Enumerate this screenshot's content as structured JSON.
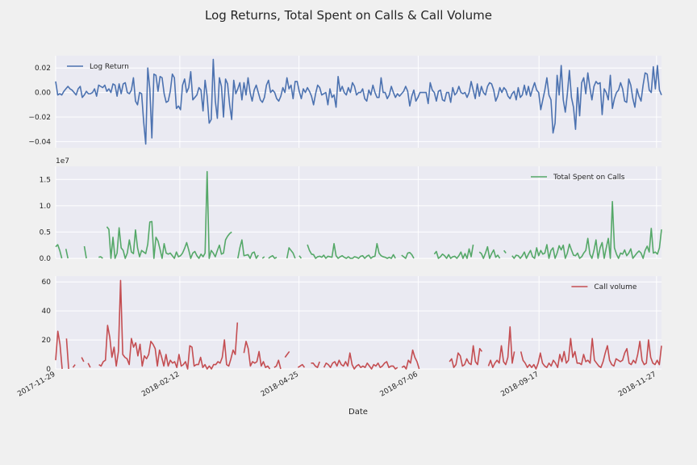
{
  "figure": {
    "title": "Log Returns, Total Spent on Calls & Call Volume",
    "xlabel": "Date"
  },
  "chart_data": [
    {
      "type": "line",
      "panel": "top",
      "series": [
        {
          "name": "Log Return",
          "color": "#4c72b0",
          "values": [
            0.009,
            -0.002,
            -0.001,
            -0.002,
            0.001,
            0.003,
            0.005,
            0.003,
            0.002,
            0.0,
            -0.002,
            0.003,
            0.005,
            -0.004,
            -0.002,
            0.001,
            -0.001,
            -0.001,
            0.0,
            0.003,
            -0.003,
            0.006,
            0.005,
            0.004,
            0.006,
            0.001,
            0.003,
            0.0,
            0.007,
            0.006,
            -0.003,
            0.007,
            -0.001,
            0.007,
            0.008,
            0.0,
            -0.001,
            0.002,
            0.012,
            -0.007,
            -0.01,
            0.0,
            -0.001,
            -0.024,
            -0.042,
            0.02,
            0.003,
            -0.037,
            0.015,
            0.014,
            0.001,
            0.013,
            0.012,
            -0.001,
            -0.008,
            -0.007,
            0.001,
            0.015,
            0.012,
            -0.013,
            -0.011,
            -0.014,
            0.006,
            0.011,
            0.0,
            0.004,
            0.017,
            -0.006,
            -0.004,
            -0.002,
            0.004,
            0.002,
            -0.015,
            0.01,
            -0.003,
            -0.025,
            -0.022,
            0.027,
            -0.007,
            -0.021,
            0.012,
            0.005,
            -0.02,
            0.011,
            0.007,
            -0.01,
            -0.022,
            0.01,
            -0.001,
            0.003,
            0.008,
            -0.006,
            0.008,
            -0.002,
            0.012,
            0.0,
            -0.007,
            0.002,
            0.006,
            0.0,
            -0.006,
            -0.008,
            -0.004,
            0.006,
            0.01,
            0.0,
            0.002,
            0.0,
            -0.005,
            -0.007,
            -0.003,
            0.004,
            0.0,
            0.012,
            0.003,
            0.006,
            -0.005,
            0.009,
            0.009,
            0.001,
            -0.005,
            0.003,
            0.0,
            0.004,
            0.001,
            -0.003,
            -0.01,
            -0.001,
            0.006,
            0.004,
            -0.002,
            -0.001,
            0.0,
            -0.01,
            0.003,
            -0.004,
            -0.002,
            -0.012,
            0.013,
            0.001,
            0.005,
            0.0,
            -0.002,
            0.004,
            0.0,
            0.008,
            0.005,
            -0.002,
            0.0,
            0.0,
            0.003,
            -0.005,
            -0.007,
            0.002,
            -0.002,
            0.006,
            0.0,
            -0.004,
            -0.004,
            0.012,
            0.0,
            0.0,
            -0.005,
            -0.002,
            0.005,
            0.0,
            -0.004,
            -0.001,
            -0.003,
            -0.001,
            0.001,
            0.005,
            0.001,
            -0.011,
            -0.003,
            0.002,
            -0.007,
            -0.004,
            0.0,
            0.0,
            0.0,
            0.0,
            -0.009,
            0.008,
            0.002,
            0.0,
            -0.007,
            0.001,
            0.002,
            -0.006,
            -0.007,
            0.0,
            0.0,
            -0.008,
            0.004,
            -0.002,
            0.0,
            0.005,
            0.0,
            -0.001,
            0.0,
            -0.004,
            0.0,
            0.009,
            0.002,
            -0.005,
            0.007,
            -0.003,
            0.005,
            0.0,
            -0.002,
            0.005,
            0.008,
            0.007,
            0.002,
            -0.007,
            -0.003,
            0.004,
            0.0,
            0.004,
            0.002,
            -0.003,
            -0.005,
            -0.001,
            0.001,
            -0.006,
            0.004,
            -0.004,
            -0.002,
            0.006,
            -0.002,
            0.005,
            -0.003,
            0.003,
            0.008,
            0.002,
            0.0,
            -0.014,
            -0.006,
            0.002,
            0.012,
            -0.002,
            -0.006,
            -0.033,
            -0.025,
            0.014,
            -0.002,
            0.022,
            -0.006,
            -0.016,
            -0.001,
            0.018,
            -0.004,
            -0.012,
            -0.03,
            0.004,
            -0.019,
            0.008,
            0.012,
            -0.001,
            0.016,
            0.004,
            -0.006,
            0.005,
            0.009,
            0.007,
            0.008,
            -0.018,
            0.003,
            0.0,
            -0.006,
            0.014,
            -0.013,
            -0.005,
            0.0,
            0.002,
            0.008,
            0.003,
            -0.007,
            -0.008,
            0.011,
            0.006,
            -0.005,
            -0.012,
            0.003,
            -0.003,
            -0.007,
            0.006,
            0.016,
            0.015,
            0.002,
            0.0,
            0.021,
            0.003,
            0.022,
            0.002,
            -0.002
          ]
        }
      ],
      "ylim": [
        -0.045,
        0.03
      ],
      "yticks": [
        0.02,
        0.0,
        -0.02,
        -0.04
      ],
      "ytick_labels": [
        "0.02",
        "0.00",
        "−0.02",
        "−0.04"
      ],
      "legend": "top-left"
    },
    {
      "type": "line",
      "panel": "middle",
      "offset_label": "1e7",
      "series": [
        {
          "name": "Total Spent on Calls",
          "color": "#55a868",
          "values": [
            2200000,
            2600000,
            1500000,
            0,
            null,
            1800000,
            0,
            null,
            700000,
            null,
            0,
            null,
            null,
            null,
            2300000,
            0,
            null,
            300000,
            null,
            0,
            null,
            200000,
            300000,
            0,
            null,
            6000000,
            5500000,
            0,
            4000000,
            0,
            1000000,
            5800000,
            2000000,
            1500000,
            0,
            1000000,
            3500000,
            1200000,
            900000,
            5400000,
            2000000,
            300000,
            1500000,
            1200000,
            900000,
            2700000,
            6900000,
            7000000,
            0,
            4000000,
            3300000,
            1700000,
            0,
            2800000,
            1000000,
            800000,
            1000000,
            500000,
            0,
            1200000,
            300000,
            500000,
            1000000,
            1900000,
            3000000,
            1600000,
            0,
            1000000,
            1300000,
            500000,
            0,
            800000,
            300000,
            1000000,
            16500000,
            0,
            1500000,
            1000000,
            300000,
            1500000,
            2500000,
            800000,
            1000000,
            3500000,
            4200000,
            4700000,
            5000000,
            null,
            null,
            0,
            2000000,
            3500000,
            500000,
            600000,
            700000,
            0,
            1000000,
            1200000,
            0,
            600000,
            null,
            0,
            300000,
            null,
            0,
            300000,
            500000,
            0,
            200000,
            null,
            null,
            null,
            null,
            0,
            2000000,
            1500000,
            1000000,
            0,
            null,
            500000,
            0,
            null,
            null,
            2600000,
            1500000,
            800000,
            700000,
            0,
            300000,
            400000,
            200000,
            600000,
            0,
            400000,
            300000,
            200000,
            2800000,
            500000,
            0,
            300000,
            500000,
            200000,
            0,
            300000,
            0,
            0,
            300000,
            200000,
            0,
            400000,
            500000,
            0,
            400000,
            600000,
            0,
            300000,
            400000,
            2800000,
            1000000,
            500000,
            300000,
            200000,
            0,
            200000,
            0,
            700000,
            0,
            null,
            null,
            600000,
            300000,
            0,
            1000000,
            1100000,
            700000,
            0,
            null,
            null,
            null,
            null,
            null,
            null,
            null,
            null,
            null,
            800000,
            1300000,
            0,
            300000,
            800000,
            500000,
            0,
            700000,
            0,
            300000,
            400000,
            0,
            500000,
            1200000,
            0,
            900000,
            0,
            1800000,
            300000,
            2600000,
            null,
            null,
            1200000,
            900000,
            0,
            1000000,
            2200000,
            0,
            900000,
            1600000,
            200000,
            600000,
            0,
            null,
            1500000,
            1000000,
            null,
            null,
            500000,
            0,
            600000,
            500000,
            0,
            500000,
            1200000,
            0,
            800000,
            1500000,
            300000,
            0,
            2000000,
            500000,
            1500000,
            800000,
            1000000,
            2600000,
            0,
            1500000,
            2000000,
            0,
            1000000,
            2400000,
            1600000,
            2500000,
            0,
            1000000,
            2700000,
            1600000,
            600000,
            500000,
            1000000,
            0,
            300000,
            1000000,
            1500000,
            3800000,
            800000,
            0,
            1500000,
            3500000,
            0,
            2000000,
            3000000,
            0,
            2000000,
            3800000,
            0,
            10800000,
            2000000,
            800000,
            0,
            1000000,
            800000,
            1600000,
            500000,
            1000000,
            1800000,
            0,
            500000,
            1000000,
            1400000,
            1000000,
            0,
            1500000,
            2300000,
            1200000,
            5700000,
            1000000,
            1200000,
            800000,
            2000000,
            5500000
          ]
        }
      ],
      "ylim": [
        0,
        17500000
      ],
      "yticks": [
        0,
        5000000,
        10000000,
        15000000
      ],
      "ytick_labels": [
        "0.0",
        "0.5",
        "1.0",
        "1.5"
      ],
      "legend": "top-right"
    },
    {
      "type": "line",
      "panel": "bottom",
      "series": [
        {
          "name": "Call volume",
          "color": "#c44e52",
          "values": [
            6,
            26,
            17,
            0,
            null,
            21,
            0,
            null,
            1,
            3,
            null,
            null,
            8,
            5,
            null,
            4,
            1,
            null,
            null,
            null,
            3,
            2,
            5,
            6,
            30,
            22,
            8,
            15,
            2,
            12,
            61,
            10,
            8,
            7,
            3,
            21,
            15,
            18,
            9,
            17,
            2,
            9,
            7,
            10,
            19,
            17,
            14,
            2,
            13,
            8,
            2,
            10,
            2,
            6,
            4,
            5,
            1,
            10,
            2,
            3,
            5,
            0,
            16,
            15,
            2,
            3,
            3,
            8,
            1,
            3,
            0,
            2,
            0,
            3,
            3,
            5,
            4,
            8,
            20,
            3,
            2,
            7,
            13,
            10,
            32,
            null,
            null,
            11,
            19,
            14,
            2,
            5,
            4,
            5,
            12,
            2,
            5,
            1,
            2,
            0,
            null,
            1,
            2,
            6,
            0,
            null,
            8,
            10,
            12,
            null,
            null,
            null,
            1,
            2,
            3,
            1,
            null,
            null,
            4,
            4,
            2,
            1,
            5,
            null,
            1,
            4,
            3,
            1,
            4,
            5,
            2,
            6,
            3,
            2,
            5,
            2,
            11,
            3,
            0,
            2,
            3,
            1,
            2,
            1,
            4,
            2,
            0,
            3,
            2,
            4,
            1,
            2,
            4,
            5,
            1,
            2,
            2,
            0,
            1,
            null,
            1,
            2,
            0,
            6,
            4,
            13,
            8,
            5,
            0,
            null,
            null,
            null,
            null,
            null,
            null,
            null,
            null,
            null,
            null,
            null,
            null,
            null,
            5,
            7,
            1,
            3,
            11,
            9,
            2,
            3,
            7,
            4,
            3,
            16,
            5,
            3,
            14,
            12,
            null,
            null,
            2,
            6,
            1,
            4,
            6,
            4,
            16,
            5,
            3,
            8,
            29,
            4,
            12,
            null,
            null,
            12,
            6,
            4,
            1,
            3,
            1,
            3,
            0,
            4,
            11,
            4,
            2,
            1,
            4,
            2,
            6,
            4,
            1,
            10,
            5,
            12,
            4,
            6,
            21,
            8,
            12,
            4,
            4,
            3,
            10,
            5,
            6,
            4,
            21,
            6,
            4,
            2,
            1,
            5,
            11,
            16,
            6,
            3,
            2,
            7,
            6,
            5,
            6,
            11,
            14,
            4,
            3,
            6,
            4,
            10,
            19,
            6,
            3,
            4,
            20,
            8,
            4,
            3,
            6,
            3,
            16
          ]
        }
      ],
      "ylim": [
        0,
        64
      ],
      "yticks": [
        0,
        20,
        40,
        60
      ],
      "ytick_labels": [
        "0",
        "20",
        "40",
        "60"
      ],
      "legend": "top-right"
    }
  ],
  "x_axis": {
    "start": "2017-11-29",
    "end": "2018-11-30",
    "ticks": [
      {
        "date": "2017-11-29",
        "label": "2017-11-29"
      },
      {
        "date": "2018-02-12",
        "label": "2018-02-12"
      },
      {
        "date": "2018-04-25",
        "label": "2018-04-25"
      },
      {
        "date": "2018-07-06",
        "label": "2018-07-06"
      },
      {
        "date": "2018-09-17",
        "label": "2018-09-17"
      },
      {
        "date": "2018-11-27",
        "label": "2018-11-27"
      }
    ]
  }
}
